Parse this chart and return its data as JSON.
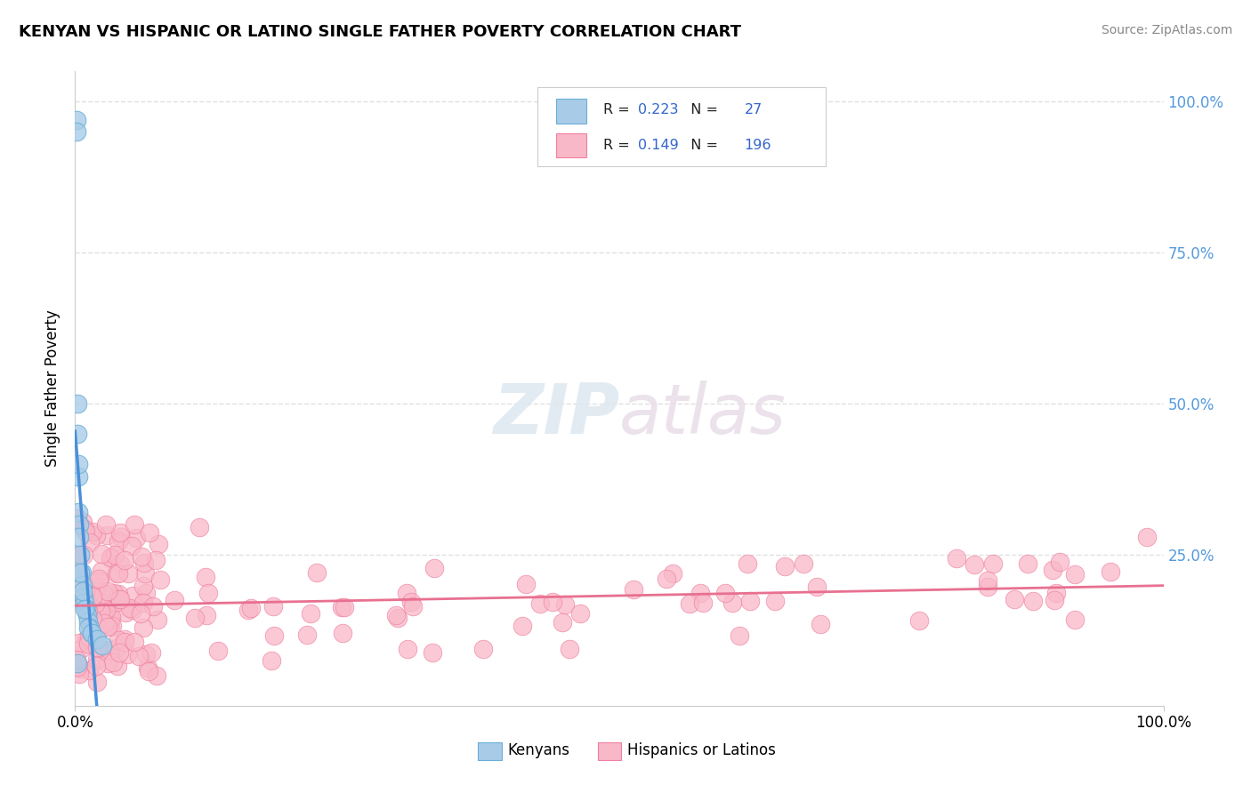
{
  "title": "KENYAN VS HISPANIC OR LATINO SINGLE FATHER POVERTY CORRELATION CHART",
  "source": "Source: ZipAtlas.com",
  "ylabel": "Single Father Poverty",
  "legend_label1": "Kenyans",
  "legend_label2": "Hispanics or Latinos",
  "R_kenyan": 0.223,
  "N_kenyan": 27,
  "R_hispanic": 0.149,
  "N_hispanic": 196,
  "color_kenyan_fill": "#a8cce8",
  "color_kenyan_edge": "#6aaed6",
  "color_hispanic_fill": "#f9b8c8",
  "color_hispanic_edge": "#f080a0",
  "color_kenyan_line": "#4a90d9",
  "color_hispanic_line": "#e87090",
  "color_rvalue": "#3366cc",
  "color_nvalue": "#3366cc",
  "bg_color": "#ffffff",
  "grid_color": "#e0e0e0",
  "right_tick_color": "#5599dd"
}
